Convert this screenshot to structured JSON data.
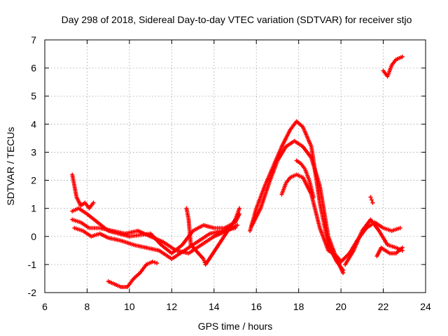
{
  "chart_data": {
    "type": "scatter",
    "title": "Day 298 of 2018, Sidereal Day-to-day VTEC variation (SDTVAR) for receiver stjo",
    "xlabel": "GPS time / hours",
    "ylabel": "SDTVAR / TECUs",
    "xlim": [
      6,
      24
    ],
    "ylim": [
      -2,
      7
    ],
    "xticks": [
      "6",
      "8",
      "10",
      "12",
      "14",
      "16",
      "18",
      "20",
      "22",
      "24"
    ],
    "yticks": [
      "-2",
      "-1",
      "0",
      "1",
      "2",
      "3",
      "4",
      "5",
      "6",
      "7"
    ],
    "grid": true,
    "marker": "+",
    "color": "#ff0000",
    "series": [
      {
        "name": "arc-main-a",
        "x": [
          7.3,
          7.6,
          8.0,
          8.5,
          9.0,
          9.5,
          10.0,
          10.5,
          11.0,
          11.5,
          12.0,
          12.5,
          13.0,
          13.5,
          14.0,
          14.5,
          15.0,
          15.2
        ],
        "y": [
          0.9,
          1.0,
          0.8,
          0.5,
          0.2,
          0.1,
          0.0,
          0.05,
          0.1,
          -0.3,
          -0.6,
          -0.3,
          0.2,
          0.4,
          0.3,
          0.3,
          0.5,
          0.8
        ]
      },
      {
        "name": "arc-main-b",
        "x": [
          7.4,
          7.8,
          8.2,
          8.6,
          9.0,
          9.6,
          10.2,
          10.8,
          11.4,
          12.0,
          12.6,
          13.2,
          13.8,
          14.4,
          15.0
        ],
        "y": [
          0.3,
          0.2,
          0.0,
          0.1,
          -0.05,
          -0.15,
          -0.3,
          -0.4,
          -0.5,
          -0.8,
          -0.5,
          -0.2,
          0.1,
          0.2,
          0.3
        ]
      },
      {
        "name": "arc-main-c",
        "x": [
          7.3,
          7.7,
          8.1,
          8.6,
          9.2,
          9.8,
          10.4,
          11.0,
          11.6,
          12.2,
          12.8,
          13.4,
          14.0,
          14.6,
          15.1
        ],
        "y": [
          0.6,
          0.5,
          0.3,
          0.3,
          0.2,
          0.1,
          0.2,
          0.0,
          -0.2,
          -0.5,
          -0.6,
          -0.3,
          0.0,
          0.2,
          0.4
        ]
      },
      {
        "name": "arc-early",
        "x": [
          7.3,
          7.5,
          7.7,
          7.9,
          8.1,
          8.3
        ],
        "y": [
          2.2,
          1.4,
          1.1,
          1.2,
          1.0,
          1.2
        ]
      },
      {
        "name": "arc-low",
        "x": [
          9.0,
          9.3,
          9.6,
          9.9,
          10.2,
          10.5,
          10.8,
          11.1,
          11.3
        ],
        "y": [
          -1.6,
          -1.7,
          -1.8,
          -1.8,
          -1.5,
          -1.3,
          -1.0,
          -0.9,
          -0.95
        ]
      },
      {
        "name": "arc-mid-spikes",
        "x": [
          12.7,
          12.8,
          12.9,
          13.5,
          13.6,
          15.0,
          15.2
        ],
        "y": [
          1.0,
          0.6,
          -0.3,
          -0.8,
          -1.0,
          0.6,
          1.0
        ]
      },
      {
        "name": "arc-peak-a",
        "x": [
          15.7,
          16.0,
          16.4,
          16.8,
          17.2,
          17.6,
          17.9,
          18.2,
          18.6,
          19.0,
          19.4,
          19.8,
          20.1
        ],
        "y": [
          0.2,
          1.0,
          1.8,
          2.5,
          3.2,
          3.8,
          4.1,
          3.9,
          3.2,
          1.2,
          -0.3,
          -0.9,
          -1.2
        ]
      },
      {
        "name": "arc-peak-b",
        "x": [
          15.8,
          16.2,
          16.6,
          17.0,
          17.4,
          17.8,
          18.2,
          18.6,
          19.0,
          19.4,
          19.8,
          20.1
        ],
        "y": [
          0.4,
          1.0,
          1.9,
          2.7,
          3.2,
          3.4,
          3.2,
          2.8,
          1.8,
          0.0,
          -0.8,
          -1.3
        ]
      },
      {
        "name": "arc-peak-c",
        "x": [
          17.2,
          17.4,
          17.6,
          17.9,
          18.2,
          18.6,
          19.0,
          19.4,
          19.8,
          20.0
        ],
        "y": [
          1.5,
          1.9,
          2.1,
          2.2,
          2.1,
          1.5,
          0.3,
          -0.5,
          -0.7,
          -0.9
        ]
      },
      {
        "name": "arc-peak-d",
        "x": [
          17.9,
          18.1,
          18.3,
          18.5,
          18.7
        ],
        "y": [
          2.7,
          2.6,
          2.4,
          2.0,
          1.4
        ]
      },
      {
        "name": "arc-tail-a",
        "x": [
          20.0,
          20.4,
          20.8,
          21.2,
          21.6,
          22.0,
          22.4,
          22.8
        ],
        "y": [
          -0.9,
          -0.6,
          -0.1,
          0.3,
          0.5,
          0.3,
          0.2,
          0.3
        ]
      },
      {
        "name": "arc-tail-b",
        "x": [
          20.2,
          20.6,
          21.0,
          21.4,
          21.8,
          22.2,
          22.6,
          22.9
        ],
        "y": [
          -1.0,
          -0.5,
          0.2,
          0.6,
          0.2,
          -0.3,
          -0.4,
          -0.5
        ]
      },
      {
        "name": "arc-tail-c",
        "x": [
          21.7,
          21.9,
          22.1,
          22.3,
          22.6,
          22.9
        ],
        "y": [
          -0.7,
          -0.4,
          -0.5,
          -0.6,
          -0.6,
          -0.4
        ]
      },
      {
        "name": "arc-tail-spike",
        "x": [
          21.4,
          21.45,
          21.5
        ],
        "y": [
          1.4,
          1.3,
          1.2
        ]
      },
      {
        "name": "arc-late",
        "x": [
          22.0,
          22.2,
          22.4,
          22.6,
          22.9
        ],
        "y": [
          5.9,
          5.7,
          6.1,
          6.3,
          6.4
        ]
      }
    ]
  }
}
